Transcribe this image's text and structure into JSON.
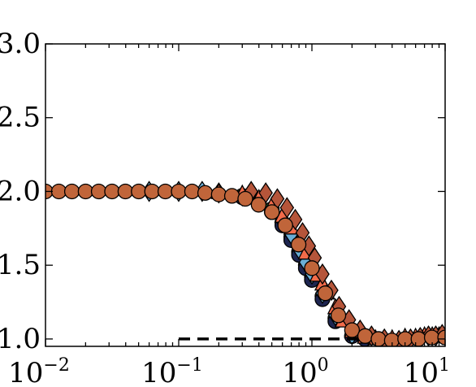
{
  "chart_data": {
    "type": "scatter",
    "x_scale": "log",
    "xlim": [
      0.01,
      10
    ],
    "ylim": [
      0.95,
      3.0
    ],
    "x_ticks": [
      {
        "value": 0.01,
        "base": "10",
        "exp": "−2"
      },
      {
        "value": 0.1,
        "base": "10",
        "exp": "−1"
      },
      {
        "value": 1,
        "base": "10",
        "exp": "0"
      },
      {
        "value": 10,
        "base": "10",
        "exp": "1"
      }
    ],
    "y_ticks": [
      {
        "value": 1.0,
        "label": "1.0"
      },
      {
        "value": 1.5,
        "label": "1.5"
      },
      {
        "value": 2.0,
        "label": "2.0"
      },
      {
        "value": 2.5,
        "label": "2.5"
      },
      {
        "value": 3.0,
        "label": "3.0"
      }
    ],
    "grid": false,
    "reference_line": {
      "x": [
        0.1,
        2.2
      ],
      "y": 1.0,
      "style": "dashed",
      "color": "#000000"
    },
    "series": [
      {
        "marker": "circle",
        "color": "#2f8a3c",
        "x": [
          0.3,
          0.4,
          0.5,
          0.6,
          0.7,
          0.8,
          0.9,
          1.0,
          1.2,
          1.5,
          2.0
        ],
        "y": [
          1.97,
          1.94,
          1.88,
          1.79,
          1.69,
          1.59,
          1.5,
          1.42,
          1.29,
          1.14,
          1.02
        ]
      },
      {
        "marker": "circle",
        "color": "#1d2550",
        "x": [
          0.3,
          0.4,
          0.5,
          0.6,
          0.7,
          0.8,
          0.9,
          1.0,
          1.2,
          1.5,
          2.0,
          2.5
        ],
        "y": [
          1.96,
          1.93,
          1.86,
          1.77,
          1.67,
          1.57,
          1.48,
          1.4,
          1.27,
          1.12,
          1.02,
          1.0
        ]
      },
      {
        "marker": "diamond",
        "color": "#6aaed6",
        "x": [
          0.06,
          0.1,
          0.15,
          0.2,
          0.3,
          0.4,
          0.5,
          0.6,
          0.7,
          0.8,
          0.9,
          1.0,
          1.2,
          1.5,
          2.0
        ],
        "y": [
          2.0,
          2.0,
          2.0,
          1.99,
          1.97,
          1.94,
          1.88,
          1.8,
          1.71,
          1.61,
          1.52,
          1.44,
          1.31,
          1.16,
          1.03
        ]
      },
      {
        "marker": "triangle",
        "color": "#f26b4a",
        "x": [
          0.2,
          0.3,
          0.4,
          0.5,
          0.6,
          0.7,
          0.8,
          0.9,
          1.0,
          1.1,
          1.2,
          1.3,
          1.5,
          1.7,
          2.0,
          2.5,
          3.0,
          4.0,
          5.0,
          6.0,
          7.0,
          8.0,
          9.0
        ],
        "y": [
          1.99,
          1.98,
          1.95,
          1.9,
          1.83,
          1.75,
          1.66,
          1.58,
          1.5,
          1.43,
          1.37,
          1.31,
          1.21,
          1.12,
          1.05,
          1.01,
          1.0,
          1.0,
          1.01,
          1.01,
          1.02,
          1.02,
          1.02
        ]
      },
      {
        "marker": "diamond",
        "color": "#b5553a",
        "x": [
          0.35,
          0.45,
          0.55,
          0.65,
          0.75,
          0.85,
          0.95,
          1.05,
          1.2,
          1.4,
          1.6,
          1.9,
          2.3,
          2.8,
          3.5,
          4.5,
          5.5,
          6.5,
          7.5,
          8.5,
          9.5
        ],
        "y": [
          2.0,
          1.99,
          1.95,
          1.89,
          1.81,
          1.72,
          1.63,
          1.55,
          1.44,
          1.33,
          1.22,
          1.13,
          1.06,
          1.02,
          1.0,
          0.99,
          1.0,
          1.01,
          1.02,
          1.02,
          1.03
        ]
      },
      {
        "marker": "circle",
        "color": "#c0653a",
        "x": [
          0.01,
          0.0126,
          0.0158,
          0.02,
          0.0251,
          0.0316,
          0.0398,
          0.0501,
          0.0631,
          0.0794,
          0.1,
          0.126,
          0.158,
          0.2,
          0.251,
          0.316,
          0.398,
          0.501,
          0.631,
          0.794,
          1.0,
          1.26,
          1.58,
          2.0,
          2.51,
          3.16,
          3.98,
          5.01,
          6.31,
          7.94,
          10.0
        ],
        "y": [
          2.0,
          2.0,
          2.0,
          2.0,
          2.0,
          2.0,
          2.0,
          2.0,
          2.0,
          2.0,
          2.0,
          2.0,
          1.99,
          1.98,
          1.97,
          1.95,
          1.91,
          1.86,
          1.77,
          1.64,
          1.48,
          1.31,
          1.16,
          1.06,
          1.02,
          1.0,
          0.99,
          1.0,
          1.0,
          1.01,
          1.01
        ]
      }
    ]
  }
}
